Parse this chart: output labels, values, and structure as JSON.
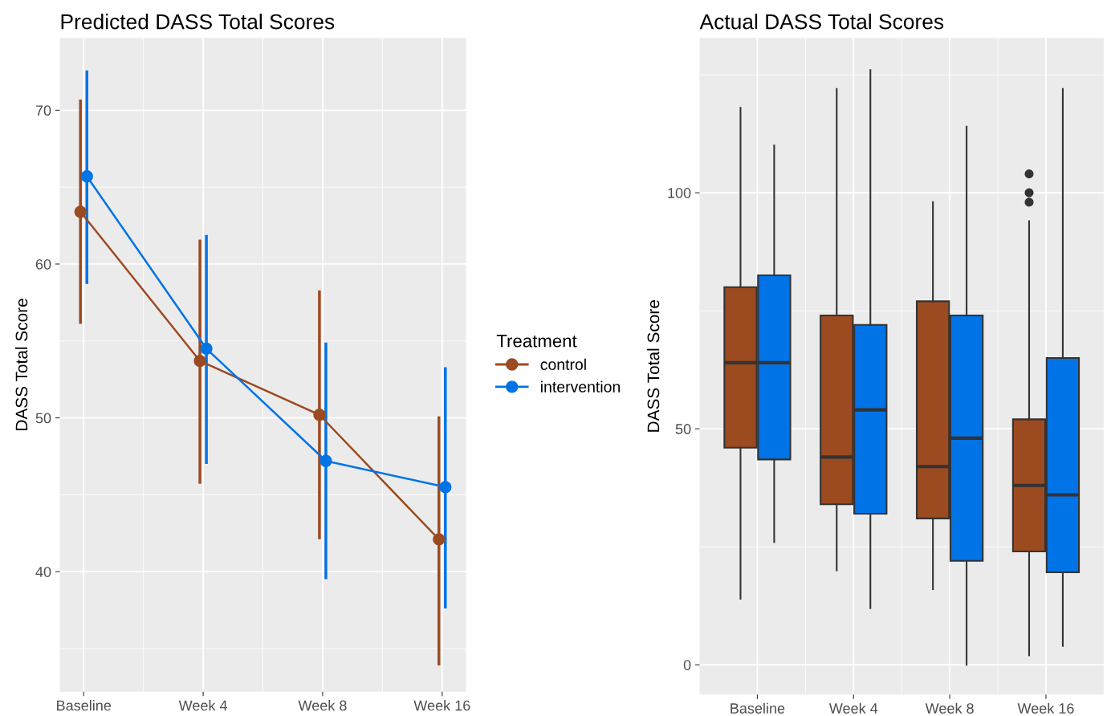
{
  "chart_data": [
    {
      "type": "line",
      "title": "Predicted DASS Total Scores",
      "ylabel": "DASS Total Score",
      "legend_title": "Treatment",
      "legend": "right",
      "marker": "circle",
      "line_style": "solid",
      "grid": true,
      "categories": [
        "Baseline",
        "Week 4",
        "Week 8",
        "Week 16"
      ],
      "ylim": [
        32.2,
        74.7
      ],
      "yticks": [
        40,
        50,
        60,
        70
      ],
      "series": [
        {
          "name": "control",
          "color": "#9c4a20",
          "values": [
            63.4,
            53.7,
            50.2,
            42.1
          ],
          "errors": [
            [
              56.2,
              70.6
            ],
            [
              45.8,
              61.5
            ],
            [
              42.2,
              58.2
            ],
            [
              34.0,
              50.0
            ]
          ]
        },
        {
          "name": "intervention",
          "color": "#0073e6",
          "values": [
            65.7,
            54.5,
            47.2,
            45.5
          ],
          "errors": [
            [
              58.8,
              72.5
            ],
            [
              47.1,
              61.8
            ],
            [
              39.6,
              54.8
            ],
            [
              37.7,
              53.2
            ]
          ]
        }
      ]
    },
    {
      "type": "box",
      "title": "Actual DASS Total Scores",
      "ylabel": "DASS Total Score",
      "grid": true,
      "categories": [
        "Baseline",
        "Week 4",
        "Week 8",
        "Week 16"
      ],
      "ylim": [
        -6.3,
        132.8
      ],
      "yticks": [
        0,
        50,
        100
      ],
      "series": [
        {
          "color": "#9c4a20",
          "boxes": [
            {
              "low": 14,
              "q1": 46,
              "median": 64,
              "q3": 80,
              "high": 118
            },
            {
              "low": 20,
              "q1": 34,
              "median": 44,
              "q3": 74,
              "high": 122
            },
            {
              "low": 16,
              "q1": 31,
              "median": 42,
              "q3": 77,
              "high": 98
            },
            {
              "low": 2,
              "q1": 24,
              "median": 38,
              "q3": 52,
              "high": 94,
              "outliers": [
                104,
                100,
                98
              ]
            }
          ]
        },
        {
          "color": "#0073e6",
          "boxes": [
            {
              "low": 26,
              "q1": 43.5,
              "median": 64,
              "q3": 82.5,
              "high": 110
            },
            {
              "low": 12,
              "q1": 32,
              "median": 54,
              "q3": 72,
              "high": 126
            },
            {
              "low": 0,
              "q1": 22,
              "median": 48,
              "q3": 74,
              "high": 114
            },
            {
              "low": 4,
              "q1": 19.6,
              "median": 36,
              "q3": 65,
              "high": 122
            }
          ]
        }
      ]
    }
  ]
}
